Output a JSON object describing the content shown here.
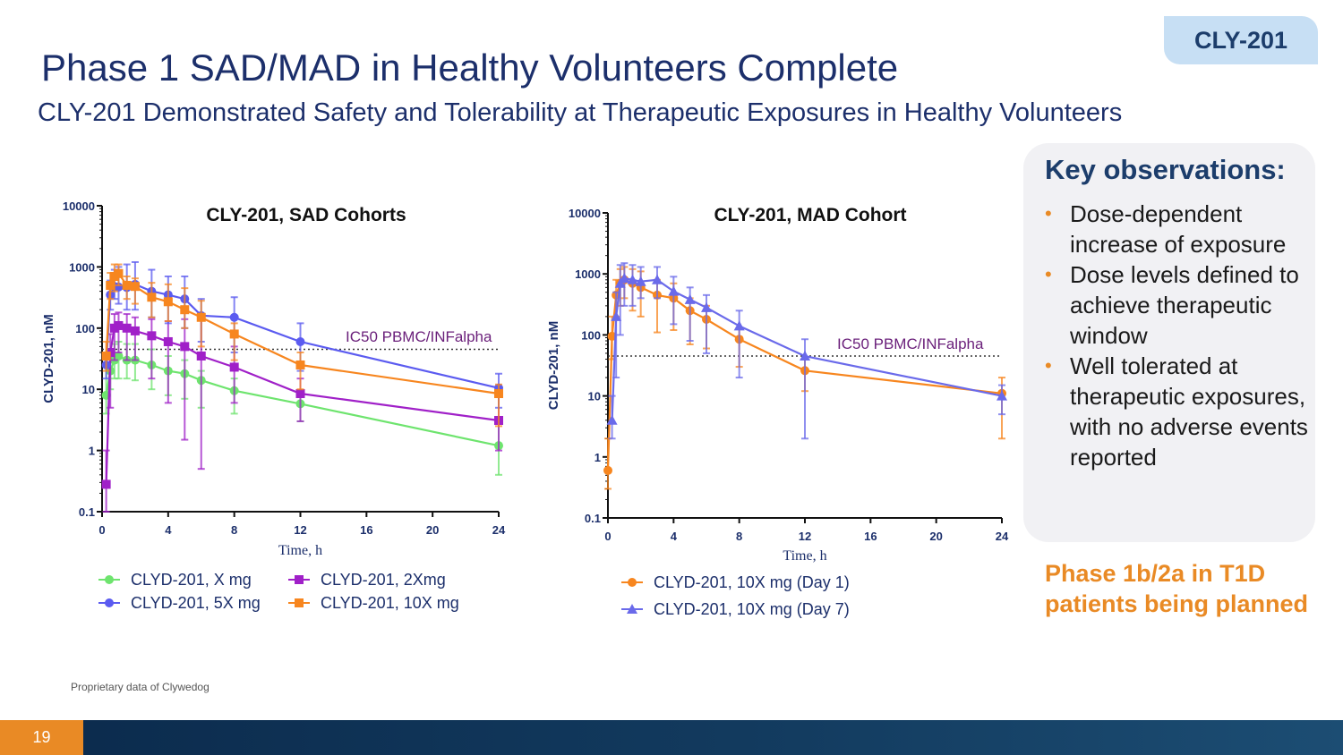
{
  "tag": "CLY-201",
  "title": "Phase 1 SAD/MAD in Healthy Volunteers Complete",
  "subtitle": "CLY-201 Demonstrated Safety  and Tolerability at Therapeutic Exposures in Healthy Volunteers",
  "observations": {
    "heading": "Key observations:",
    "bullets": [
      "Dose-dependent increase of exposure",
      "Dose levels defined to achieve therapeutic window",
      "Well tolerated at therapeutic exposures, with no adverse events reported"
    ]
  },
  "phase_note": "Phase 1b/2a in T1D patients being planned",
  "footnote": "Proprietary data of Clywedog",
  "page_number": "19",
  "chart_data": [
    {
      "type": "line",
      "title": "CLY-201, SAD Cohorts",
      "xlabel": "Time, h",
      "ylabel": "CLYD-201, nM",
      "yscale": "log",
      "ylim": [
        0.1,
        10000
      ],
      "xlim": [
        0,
        24
      ],
      "x_ticks": [
        "0",
        "4",
        "8",
        "12",
        "16",
        "20",
        "24"
      ],
      "y_ticks": [
        "0.1",
        "1",
        "10",
        "100",
        "1000",
        "10000"
      ],
      "reference_line": {
        "value": 45,
        "label": "IC50 PBMC/INFalpha"
      },
      "series": [
        {
          "name": "CLYD-201, X mg",
          "color": "#6ee46e",
          "marker": "circle",
          "x": [
            0.25,
            0.5,
            0.75,
            1,
            1.5,
            2,
            3,
            4,
            5,
            6,
            8,
            12,
            24
          ],
          "y": [
            8,
            20,
            30,
            35,
            30,
            30,
            25,
            20,
            18,
            14,
            9.5,
            5.8,
            1.2
          ],
          "err_low": [
            4,
            10,
            15,
            15,
            15,
            14,
            10,
            8,
            7,
            5,
            4,
            3,
            0.4
          ],
          "err_high": [
            25,
            40,
            55,
            60,
            55,
            55,
            45,
            35,
            30,
            20,
            15,
            9,
            3
          ]
        },
        {
          "name": "CLYD-201, 2Xmg",
          "color": "#a020c8",
          "marker": "square",
          "x": [
            0.25,
            0.5,
            0.75,
            1,
            1.5,
            2,
            3,
            4,
            5,
            6,
            8,
            12,
            24
          ],
          "y": [
            0.28,
            40,
            100,
            110,
            100,
            90,
            75,
            60,
            50,
            35,
            23,
            8.5,
            3.1
          ],
          "err_low": [
            0.1,
            5,
            30,
            40,
            30,
            30,
            15,
            6,
            1.5,
            0.5,
            6,
            3,
            1
          ],
          "err_high": [
            1,
            80,
            170,
            180,
            170,
            150,
            140,
            130,
            140,
            140,
            50,
            15,
            9
          ]
        },
        {
          "name": "CLYD-201, 5X mg",
          "color": "#5b5bf0",
          "marker": "circle",
          "x": [
            0.25,
            0.5,
            0.75,
            1,
            1.5,
            2,
            3,
            4,
            5,
            6,
            8,
            12,
            24
          ],
          "y": [
            25,
            350,
            480,
            470,
            460,
            520,
            400,
            350,
            300,
            160,
            150,
            60,
            10.5
          ],
          "err_low": [
            15,
            200,
            300,
            250,
            200,
            200,
            150,
            120,
            100,
            60,
            40,
            20,
            5
          ],
          "err_high": [
            40,
            600,
            900,
            1000,
            1100,
            1200,
            900,
            700,
            700,
            300,
            320,
            120,
            18
          ]
        },
        {
          "name": "CLYD-201, 10X mg",
          "color": "#f7861f",
          "marker": "square",
          "x": [
            0.25,
            0.5,
            0.75,
            1,
            1.5,
            2,
            3,
            4,
            5,
            6,
            8,
            12,
            24
          ],
          "y": [
            35,
            500,
            700,
            780,
            500,
            480,
            320,
            270,
            200,
            150,
            80,
            25,
            8.5
          ],
          "err_low": [
            20,
            300,
            400,
            500,
            300,
            250,
            150,
            130,
            100,
            50,
            30,
            10,
            2.5
          ],
          "err_high": [
            60,
            800,
            1100,
            1100,
            700,
            650,
            550,
            520,
            450,
            280,
            120,
            40,
            12
          ]
        }
      ]
    },
    {
      "type": "line",
      "title": "CLY-201, MAD Cohort",
      "xlabel": "Time, h",
      "ylabel": "CLYD-201, nM",
      "yscale": "log",
      "ylim": [
        0.1,
        10000
      ],
      "xlim": [
        0,
        24
      ],
      "x_ticks": [
        "0",
        "4",
        "8",
        "12",
        "16",
        "20",
        "24"
      ],
      "y_ticks": [
        "0.1",
        "1",
        "10",
        "100",
        "1000",
        "10000"
      ],
      "reference_line": {
        "value": 45,
        "label": "IC50 PBMC/INFalpha"
      },
      "series": [
        {
          "name": "CLYD-201, 10X mg (Day 1)",
          "color": "#f7861f",
          "marker": "circle",
          "x": [
            0,
            0.25,
            0.5,
            0.75,
            1,
            1.5,
            2,
            3,
            4,
            5,
            6,
            8,
            12,
            24
          ],
          "y": [
            0.6,
            95,
            450,
            700,
            800,
            700,
            600,
            450,
            400,
            250,
            180,
            85,
            26,
            11
          ],
          "err_low": [
            0.3,
            40,
            200,
            300,
            400,
            250,
            200,
            110,
            120,
            70,
            60,
            30,
            12,
            2
          ],
          "err_high": [
            2,
            200,
            800,
            1200,
            1300,
            1200,
            1100,
            800,
            700,
            400,
            300,
            130,
            40,
            20
          ]
        },
        {
          "name": "CLYD-201, 10X mg (Day 7)",
          "color": "#6a6aea",
          "marker": "triangle",
          "x": [
            0.25,
            0.5,
            0.75,
            1,
            1.5,
            2,
            3,
            4,
            5,
            6,
            8,
            12,
            24
          ],
          "y": [
            4,
            200,
            700,
            850,
            800,
            750,
            800,
            520,
            380,
            280,
            140,
            45,
            10
          ],
          "err_low": [
            2,
            20,
            100,
            300,
            300,
            400,
            400,
            150,
            80,
            50,
            20,
            2,
            5
          ],
          "err_high": [
            10,
            500,
            1400,
            1500,
            1400,
            1300,
            1300,
            900,
            600,
            450,
            250,
            85,
            15
          ]
        }
      ]
    }
  ]
}
